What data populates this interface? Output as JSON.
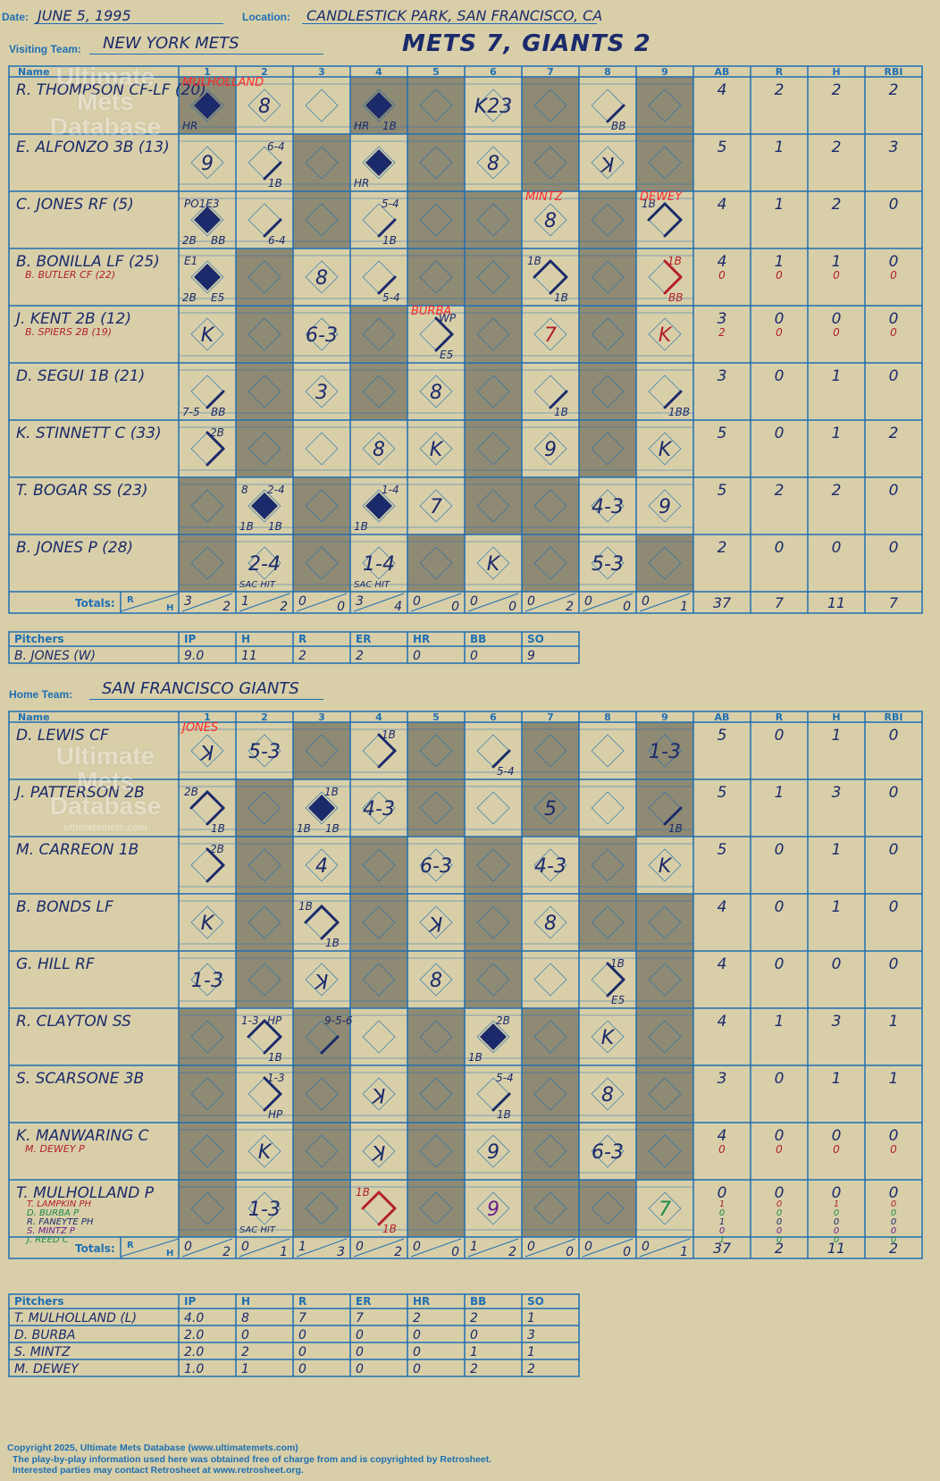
{
  "header": {
    "date_label": "Date:",
    "date": "JUNE 5, 1995",
    "location_label": "Location:",
    "location": "CANDLESTICK PARK, SAN FRANCISCO, CA",
    "visiting_label": "Visiting Team:",
    "visiting_team": "NEW YORK METS",
    "home_label": "Home Team:",
    "home_team": "SAN FRANCISCO GIANTS",
    "title": "METS 7, GIANTS 2"
  },
  "logo": {
    "line1": "Ultimate",
    "line2": "Mets",
    "line3": "Database",
    "url": "ultimatemets.com"
  },
  "cols": {
    "name": "Name",
    "innings": [
      "1",
      "2",
      "3",
      "4",
      "5",
      "6",
      "7",
      "8",
      "9"
    ],
    "stats": [
      "AB",
      "R",
      "H",
      "RBI"
    ],
    "totals": "Totals:",
    "r": "R",
    "h": "H"
  },
  "pitch_cols": [
    "Pitchers",
    "IP",
    "H",
    "R",
    "ER",
    "HR",
    "BB",
    "SO"
  ],
  "visitors": {
    "shade": [
      [
        1,
        0,
        0,
        1,
        1,
        0,
        1,
        0,
        1
      ],
      [
        0,
        0,
        1,
        0,
        1,
        0,
        1,
        0,
        1
      ],
      [
        0,
        0,
        1,
        0,
        1,
        1,
        0,
        1,
        0
      ],
      [
        0,
        1,
        0,
        0,
        1,
        1,
        0,
        1,
        0
      ],
      [
        0,
        1,
        0,
        1,
        0,
        1,
        0,
        1,
        0
      ],
      [
        0,
        1,
        0,
        1,
        0,
        1,
        0,
        1,
        0
      ],
      [
        0,
        1,
        0,
        0,
        0,
        1,
        0,
        1,
        0
      ],
      [
        1,
        0,
        1,
        0,
        0,
        1,
        1,
        0,
        0
      ],
      [
        1,
        0,
        1,
        0,
        1,
        0,
        1,
        0,
        1
      ]
    ],
    "players": [
      {
        "name": "R. THOMPSON CF-LF (20)",
        "stats": [
          "4",
          "2",
          "2",
          "2"
        ]
      },
      {
        "name": "E. ALFONZO 3B (13)",
        "stats": [
          "5",
          "1",
          "2",
          "3"
        ]
      },
      {
        "name": "C. JONES RF (5)",
        "stats": [
          "4",
          "1",
          "2",
          "0"
        ]
      },
      {
        "name": "B. BONILLA LF (25)",
        "sub": "B. BUTLER CF (22)",
        "stats": [
          "4",
          "1",
          "1",
          "0"
        ],
        "sub_stats": [
          "0",
          "0",
          "0",
          "0"
        ]
      },
      {
        "name": "J. KENT 2B (12)",
        "sub": "B. SPIERS 2B (19)",
        "stats": [
          "3",
          "0",
          "0",
          "0"
        ],
        "sub_stats": [
          "2",
          "0",
          "0",
          "0"
        ]
      },
      {
        "name": "D. SEGUI 1B (21)",
        "stats": [
          "3",
          "0",
          "1",
          "0"
        ]
      },
      {
        "name": "K. STINNETT C (33)",
        "stats": [
          "5",
          "0",
          "1",
          "2"
        ]
      },
      {
        "name": "T. BOGAR SS (23)",
        "stats": [
          "5",
          "2",
          "2",
          "0"
        ]
      },
      {
        "name": "B. JONES P (28)",
        "stats": [
          "2",
          "0",
          "0",
          "0"
        ]
      }
    ],
    "plays": [
      {
        "r": 0,
        "i": 0,
        "run": 1,
        "bl": "HR"
      },
      {
        "r": 0,
        "i": 1,
        "c": "8"
      },
      {
        "r": 0,
        "i": 3,
        "run": 1,
        "bl": "HR",
        "br": "1B"
      },
      {
        "r": 0,
        "i": 5,
        "c": "K23"
      },
      {
        "r": 0,
        "i": 7,
        "p": [
          "rb"
        ],
        "br": "BB"
      },
      {
        "r": 1,
        "i": 0,
        "c": "9"
      },
      {
        "r": 1,
        "i": 1,
        "p": [
          "rb"
        ],
        "br": "1B",
        "tr": "6-4"
      },
      {
        "r": 1,
        "i": 3,
        "run": 1,
        "bl": "HR"
      },
      {
        "r": 1,
        "i": 5,
        "c": "8"
      },
      {
        "r": 1,
        "i": 7,
        "c": "K",
        "rev": 1
      },
      {
        "r": 2,
        "i": 0,
        "run": 1,
        "bl": "2B",
        "br": "BB",
        "tl": "PO1E3"
      },
      {
        "r": 2,
        "i": 1,
        "p": [
          "rb"
        ],
        "br": "6-4"
      },
      {
        "r": 2,
        "i": 3,
        "p": [
          "rb"
        ],
        "br": "1B",
        "tr": "5-4"
      },
      {
        "r": 2,
        "i": 6,
        "c": "8"
      },
      {
        "r": 2,
        "i": 8,
        "p": [
          "tl",
          "tr",
          "rb"
        ],
        "tl": "1B"
      },
      {
        "r": 3,
        "i": 0,
        "run": 1,
        "bl": "2B",
        "br": "E5",
        "tl": "E1"
      },
      {
        "r": 3,
        "i": 2,
        "c": "8"
      },
      {
        "r": 3,
        "i": 3,
        "p": [
          "rb"
        ],
        "br": "5-4"
      },
      {
        "r": 3,
        "i": 6,
        "p": [
          "tl",
          "tr",
          "rb"
        ],
        "tl": "1B",
        "br": "1B"
      },
      {
        "r": 3,
        "i": 8,
        "p": [
          "tr",
          "rb"
        ],
        "tr": "1B",
        "br": "BB",
        "red": 1
      },
      {
        "r": 4,
        "i": 0,
        "c": "K"
      },
      {
        "r": 4,
        "i": 2,
        "c": "6-3"
      },
      {
        "r": 4,
        "i": 4,
        "p": [
          "tr",
          "rb"
        ],
        "tr": "WP",
        "br": "E5"
      },
      {
        "r": 4,
        "i": 6,
        "c": "7",
        "red": 1
      },
      {
        "r": 4,
        "i": 8,
        "c": "K",
        "red": 1
      },
      {
        "r": 5,
        "i": 0,
        "p": [
          "rb"
        ],
        "bl": "7-5",
        "br": "BB"
      },
      {
        "r": 5,
        "i": 2,
        "c": "3"
      },
      {
        "r": 5,
        "i": 4,
        "c": "8"
      },
      {
        "r": 5,
        "i": 6,
        "p": [
          "rb"
        ],
        "br": "1B"
      },
      {
        "r": 5,
        "i": 8,
        "p": [
          "rb"
        ],
        "br": "1BB"
      },
      {
        "r": 6,
        "i": 0,
        "p": [
          "tr",
          "rb"
        ],
        "tr": "2B"
      },
      {
        "r": 6,
        "i": 3,
        "c": "8"
      },
      {
        "r": 6,
        "i": 4,
        "c": "K"
      },
      {
        "r": 6,
        "i": 6,
        "c": "9"
      },
      {
        "r": 6,
        "i": 8,
        "c": "K"
      },
      {
        "r": 7,
        "i": 1,
        "run": 1,
        "bl": "1B",
        "br": "1B",
        "tl": "8",
        "tr": "2-4"
      },
      {
        "r": 7,
        "i": 3,
        "run": 1,
        "bl": "1B",
        "tr": "1-4"
      },
      {
        "r": 7,
        "i": 4,
        "c": "7"
      },
      {
        "r": 7,
        "i": 7,
        "c": "4-3"
      },
      {
        "r": 7,
        "i": 8,
        "c": "9"
      },
      {
        "r": 8,
        "i": 1,
        "c": "2-4",
        "bl": "SAC HIT"
      },
      {
        "r": 8,
        "i": 3,
        "c": "1-4",
        "bl": "SAC HIT"
      },
      {
        "r": 8,
        "i": 5,
        "c": "K"
      },
      {
        "r": 8,
        "i": 7,
        "c": "5-3"
      }
    ],
    "notes": [
      {
        "r": 0,
        "i": 0,
        "t": "MULHOLLAND"
      },
      {
        "r": 2,
        "i": 6,
        "t": "MINTZ"
      },
      {
        "r": 2,
        "i": 8,
        "t": "DEWEY"
      },
      {
        "r": 4,
        "i": 4,
        "t": "BURBA"
      }
    ],
    "totals": [
      [
        "3",
        "2"
      ],
      [
        "1",
        "2"
      ],
      [
        "0",
        "0"
      ],
      [
        "3",
        "4"
      ],
      [
        "0",
        "0"
      ],
      [
        "0",
        "0"
      ],
      [
        "0",
        "2"
      ],
      [
        "0",
        "0"
      ],
      [
        "0",
        "1"
      ]
    ],
    "total_stats": [
      "37",
      "7",
      "11",
      "7"
    ],
    "pitchers": [
      {
        "name": "B. JONES (W)",
        "stats": [
          "9.0",
          "11",
          "2",
          "2",
          "0",
          "0",
          "9"
        ]
      }
    ]
  },
  "home": {
    "shade": [
      [
        0,
        0,
        1,
        0,
        1,
        0,
        1,
        0,
        1
      ],
      [
        0,
        1,
        0,
        0,
        1,
        0,
        1,
        0,
        1
      ],
      [
        0,
        1,
        0,
        1,
        0,
        1,
        0,
        1,
        0
      ],
      [
        0,
        1,
        0,
        1,
        0,
        1,
        0,
        1,
        1
      ],
      [
        0,
        1,
        0,
        1,
        0,
        1,
        0,
        0,
        1
      ],
      [
        1,
        0,
        1,
        0,
        1,
        0,
        1,
        0,
        1
      ],
      [
        1,
        0,
        1,
        0,
        1,
        0,
        1,
        0,
        1
      ],
      [
        1,
        0,
        1,
        0,
        1,
        0,
        1,
        0,
        1
      ],
      [
        1,
        0,
        1,
        0,
        1,
        0,
        1,
        1,
        0
      ]
    ],
    "players": [
      {
        "name": "D. LEWIS CF",
        "stats": [
          "5",
          "0",
          "1",
          "0"
        ]
      },
      {
        "name": "J. PATTERSON 2B",
        "stats": [
          "5",
          "1",
          "3",
          "0"
        ]
      },
      {
        "name": "M. CARREON 1B",
        "stats": [
          "5",
          "0",
          "1",
          "0"
        ]
      },
      {
        "name": "B. BONDS LF",
        "stats": [
          "4",
          "0",
          "1",
          "0"
        ]
      },
      {
        "name": "G. HILL RF",
        "stats": [
          "4",
          "0",
          "0",
          "0"
        ]
      },
      {
        "name": "R. CLAYTON SS",
        "stats": [
          "4",
          "1",
          "3",
          "1"
        ]
      },
      {
        "name": "S. SCARSONE 3B",
        "stats": [
          "3",
          "0",
          "1",
          "1"
        ]
      },
      {
        "name": "K. MANWARING C",
        "sub": "M. DEWEY P",
        "stats": [
          "4",
          "0",
          "0",
          "0"
        ],
        "sub_stats": [
          "0",
          "0",
          "0",
          "0"
        ]
      },
      {
        "name": "T. MULHOLLAND P",
        "subs": [
          "T. LAMPKIN PH",
          "D. BURBA P",
          "R. FANEYTE PH",
          "S. MINTZ P",
          "J. REED C"
        ],
        "stats": [
          "0",
          "0",
          "0",
          "0"
        ],
        "subs_stats": [
          [
            "1",
            "0",
            "1",
            "0"
          ],
          [
            "0",
            "0",
            "0",
            "0"
          ],
          [
            "1",
            "0",
            "0",
            "0"
          ],
          [
            "0",
            "0",
            "0",
            "0"
          ],
          [
            "1",
            "0",
            "0",
            "0"
          ]
        ]
      }
    ],
    "plays": [
      {
        "r": 0,
        "i": 0,
        "c": "K",
        "rev": 1
      },
      {
        "r": 0,
        "i": 1,
        "c": "5-3"
      },
      {
        "r": 0,
        "i": 3,
        "p": [
          "tr",
          "rb"
        ],
        "tr": "1B"
      },
      {
        "r": 0,
        "i": 5,
        "p": [
          "rb"
        ],
        "br": "5-4"
      },
      {
        "r": 0,
        "i": 8,
        "c": "1-3"
      },
      {
        "r": 1,
        "i": 0,
        "p": [
          "tl",
          "tr",
          "rb"
        ],
        "tl": "2B",
        "br": "1B"
      },
      {
        "r": 1,
        "i": 2,
        "run": 1,
        "bl": "1B",
        "br": "1B",
        "tr": "1B"
      },
      {
        "r": 1,
        "i": 3,
        "c": "4-3"
      },
      {
        "r": 1,
        "i": 6,
        "c": "5"
      },
      {
        "r": 1,
        "i": 8,
        "p": [
          "rb"
        ],
        "br": "1B"
      },
      {
        "r": 2,
        "i": 0,
        "p": [
          "tr",
          "rb"
        ],
        "tr": "2B"
      },
      {
        "r": 2,
        "i": 2,
        "c": "4"
      },
      {
        "r": 2,
        "i": 4,
        "c": "6-3"
      },
      {
        "r": 2,
        "i": 6,
        "c": "4-3"
      },
      {
        "r": 2,
        "i": 8,
        "c": "K"
      },
      {
        "r": 3,
        "i": 0,
        "c": "K"
      },
      {
        "r": 3,
        "i": 2,
        "p": [
          "tl",
          "tr",
          "rb"
        ],
        "tl": "1B",
        "br": "1B"
      },
      {
        "r": 3,
        "i": 4,
        "c": "K",
        "rev": 1
      },
      {
        "r": 3,
        "i": 6,
        "c": "8"
      },
      {
        "r": 4,
        "i": 0,
        "c": "1-3"
      },
      {
        "r": 4,
        "i": 2,
        "c": "K",
        "rev": 1
      },
      {
        "r": 4,
        "i": 4,
        "c": "8"
      },
      {
        "r": 4,
        "i": 7,
        "p": [
          "tr",
          "rb"
        ],
        "tr": "1B",
        "br": "E5"
      },
      {
        "r": 5,
        "i": 1,
        "p": [
          "tl",
          "tr",
          "rb"
        ],
        "tl": "1-3",
        "tr": "HP",
        "br": "1B"
      },
      {
        "r": 5,
        "i": 2,
        "p": [
          "rb"
        ],
        "tr": "9-5-6"
      },
      {
        "r": 5,
        "i": 5,
        "run": 1,
        "bl": "1B",
        "tr": "2B"
      },
      {
        "r": 5,
        "i": 7,
        "c": "K"
      },
      {
        "r": 6,
        "i": 1,
        "p": [
          "tr",
          "rb"
        ],
        "tr": "1-3",
        "br": "HP"
      },
      {
        "r": 6,
        "i": 3,
        "c": "K",
        "rev": 1
      },
      {
        "r": 6,
        "i": 5,
        "p": [
          "rb"
        ],
        "tr": "5-4",
        "br": "1B"
      },
      {
        "r": 6,
        "i": 7,
        "c": "8"
      },
      {
        "r": 7,
        "i": 1,
        "c": "K"
      },
      {
        "r": 7,
        "i": 3,
        "c": "K",
        "rev": 1
      },
      {
        "r": 7,
        "i": 5,
        "c": "9"
      },
      {
        "r": 7,
        "i": 7,
        "c": "6-3"
      },
      {
        "r": 8,
        "i": 1,
        "c": "1-3",
        "bl": "SAC HIT"
      },
      {
        "r": 8,
        "i": 3,
        "p": [
          "tl",
          "tr",
          "rb"
        ],
        "tl": "1B",
        "br": "1B",
        "red": 1
      },
      {
        "r": 8,
        "i": 5,
        "c": "9",
        "purple": 1
      },
      {
        "r": 8,
        "i": 8,
        "c": "7",
        "green": 1
      }
    ],
    "notes": [
      {
        "r": 0,
        "i": 0,
        "t": "JONES"
      }
    ],
    "totals": [
      [
        "0",
        "2"
      ],
      [
        "0",
        "1"
      ],
      [
        "1",
        "3"
      ],
      [
        "0",
        "2"
      ],
      [
        "0",
        "0"
      ],
      [
        "1",
        "2"
      ],
      [
        "0",
        "0"
      ],
      [
        "0",
        "0"
      ],
      [
        "0",
        "1"
      ]
    ],
    "total_stats": [
      "37",
      "2",
      "11",
      "2"
    ],
    "pitchers": [
      {
        "name": "T. MULHOLLAND (L)",
        "stats": [
          "4.0",
          "8",
          "7",
          "7",
          "2",
          "2",
          "1"
        ]
      },
      {
        "name": "D. BURBA",
        "stats": [
          "2.0",
          "0",
          "0",
          "0",
          "0",
          "0",
          "3"
        ]
      },
      {
        "name": "S. MINTZ",
        "stats": [
          "2.0",
          "2",
          "0",
          "0",
          "0",
          "1",
          "1"
        ]
      },
      {
        "name": "M. DEWEY",
        "stats": [
          "1.0",
          "1",
          "0",
          "0",
          "0",
          "2",
          "2"
        ]
      }
    ]
  },
  "footer": {
    "line1": "Copyright 2025, Ultimate Mets Database (www.ultimatemets.com)",
    "line2": "The play-by-play information used here was obtained free of charge from and is copyrighted by Retrosheet.",
    "line3": "Interested parties may contact Retrosheet at www.retrosheet.org."
  },
  "colors": {
    "ink": "#1b2a6b",
    "blue": "#1f6fb2",
    "shade": "#8f8a73",
    "paper": "#d8cfa9",
    "red": "#b3202a",
    "note": "#ff2a2a",
    "purple": "#6a1f8a",
    "green": "#1d8a4a"
  }
}
